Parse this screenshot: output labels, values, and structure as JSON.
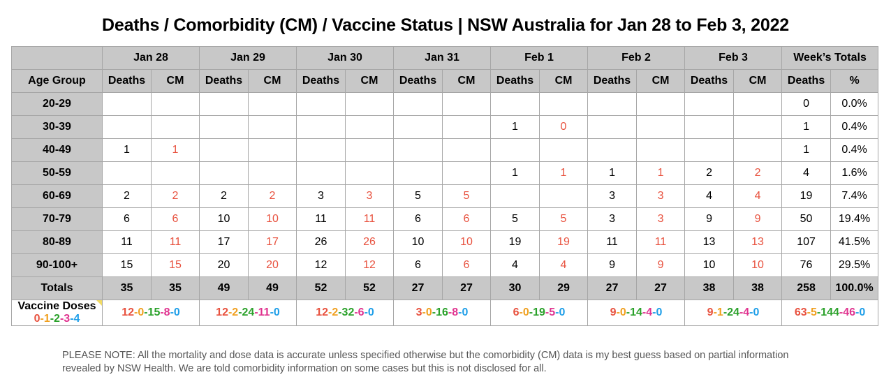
{
  "title": "Deaths / Comorbidity (CM) / Vaccine Status | NSW Australia for Jan 28 to Feb 3, 2022",
  "header": {
    "dates": [
      "Jan 28",
      "Jan 29",
      "Jan 30",
      "Jan 31",
      "Feb 1",
      "Feb 2",
      "Feb 3"
    ],
    "week_totals": "Week’s Totals",
    "age_group": "Age Group",
    "deaths": "Deaths",
    "cm": "CM",
    "percent": "%"
  },
  "rows": [
    {
      "age": "20-29",
      "cells": [
        "",
        "",
        "",
        "",
        "",
        "",
        "",
        "",
        "",
        "",
        "",
        "",
        "",
        ""
      ],
      "total": "0",
      "pct": "0.0%"
    },
    {
      "age": "30-39",
      "cells": [
        "",
        "",
        "",
        "",
        "",
        "",
        "",
        "",
        "1",
        "0",
        "",
        "",
        "",
        ""
      ],
      "total": "1",
      "pct": "0.4%"
    },
    {
      "age": "40-49",
      "cells": [
        "1",
        "1",
        "",
        "",
        "",
        "",
        "",
        "",
        "",
        "",
        "",
        "",
        "",
        ""
      ],
      "total": "1",
      "pct": "0.4%"
    },
    {
      "age": "50-59",
      "cells": [
        "",
        "",
        "",
        "",
        "",
        "",
        "",
        "",
        "1",
        "1",
        "1",
        "1",
        "2",
        "2"
      ],
      "total": "4",
      "pct": "1.6%"
    },
    {
      "age": "60-69",
      "cells": [
        "2",
        "2",
        "2",
        "2",
        "3",
        "3",
        "5",
        "5",
        "",
        "",
        "3",
        "3",
        "4",
        "4"
      ],
      "total": "19",
      "pct": "7.4%"
    },
    {
      "age": "70-79",
      "cells": [
        "6",
        "6",
        "10",
        "10",
        "11",
        "11",
        "6",
        "6",
        "5",
        "5",
        "3",
        "3",
        "9",
        "9"
      ],
      "total": "50",
      "pct": "19.4%"
    },
    {
      "age": "80-89",
      "cells": [
        "11",
        "11",
        "17",
        "17",
        "26",
        "26",
        "10",
        "10",
        "19",
        "19",
        "11",
        "11",
        "13",
        "13"
      ],
      "total": "107",
      "pct": "41.5%"
    },
    {
      "age": "90-100+",
      "cells": [
        "15",
        "15",
        "20",
        "20",
        "12",
        "12",
        "6",
        "6",
        "4",
        "4",
        "9",
        "9",
        "10",
        "10"
      ],
      "total": "76",
      "pct": "29.5%"
    }
  ],
  "totals": {
    "label": "Totals",
    "cells": [
      "35",
      "35",
      "49",
      "49",
      "52",
      "52",
      "27",
      "27",
      "30",
      "29",
      "27",
      "27",
      "38",
      "38"
    ],
    "total": "258",
    "pct": "100.0%"
  },
  "vaccine": {
    "label": "Vaccine Doses",
    "legend": [
      "0",
      "1",
      "2",
      "3",
      "4"
    ],
    "days": [
      [
        "12",
        "0",
        "15",
        "8",
        "0"
      ],
      [
        "12",
        "2",
        "24",
        "11",
        "0"
      ],
      [
        "12",
        "2",
        "32",
        "6",
        "0"
      ],
      [
        "3",
        "0",
        "16",
        "8",
        "0"
      ],
      [
        "6",
        "0",
        "19",
        "5",
        "0"
      ],
      [
        "9",
        "0",
        "14",
        "4",
        "0"
      ],
      [
        "9",
        "1",
        "24",
        "4",
        "0"
      ]
    ],
    "week": [
      "63",
      "5",
      "144",
      "46",
      "0"
    ]
  },
  "note": "PLEASE NOTE: All the mortality and dose data is accurate unless specified otherwise but the comorbidity (CM) data is my best guess based on partial information revealed by NSW Health. We are told comorbidity information on some cases but this is not disclosed for all.",
  "colors": {
    "cm_red": "#e8523f",
    "dose0": "#e8523f",
    "dose1": "#f0a020",
    "dose2": "#2aa12a",
    "dose3": "#e0338f",
    "dose4": "#1e9ee8",
    "header_grey": "#c8c8c8"
  }
}
